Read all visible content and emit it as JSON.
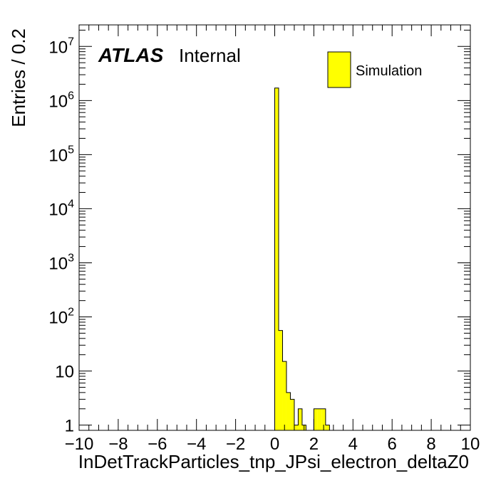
{
  "chart_data": {
    "type": "bar",
    "xlabel": "InDetTrackParticles_tnp_JPsi_electron_deltaZ0",
    "ylabel": "Entries / 0.2",
    "xlim": [
      -10,
      10
    ],
    "ylim": [
      0.8,
      25000000
    ],
    "y_scale": "log",
    "bin_width": 0.2,
    "x_ticks": [
      "−10",
      "−8",
      "−6",
      "−4",
      "−2",
      "0",
      "2",
      "4",
      "6",
      "8",
      "10"
    ],
    "y_ticks": [
      {
        "base": "1",
        "exp": ""
      },
      {
        "base": "10",
        "exp": ""
      },
      {
        "base": "10",
        "exp": "2"
      },
      {
        "base": "10",
        "exp": "3"
      },
      {
        "base": "10",
        "exp": "4"
      },
      {
        "base": "10",
        "exp": "5"
      },
      {
        "base": "10",
        "exp": "6"
      },
      {
        "base": "10",
        "exp": "7"
      }
    ],
    "bins": [
      {
        "x0": 0.0,
        "x1": 0.2,
        "value": 1700000
      },
      {
        "x0": 0.2,
        "x1": 0.4,
        "value": 56
      },
      {
        "x0": 0.4,
        "x1": 0.6,
        "value": 15
      },
      {
        "x0": 0.6,
        "x1": 0.8,
        "value": 4
      },
      {
        "x0": 0.8,
        "x1": 1.0,
        "value": 3
      },
      {
        "x0": 1.0,
        "x1": 1.2,
        "value": 1
      },
      {
        "x0": 1.2,
        "x1": 1.4,
        "value": 2
      },
      {
        "x0": 1.4,
        "x1": 1.6,
        "value": 1
      },
      {
        "x0": 1.6,
        "x1": 1.8,
        "value": 0
      },
      {
        "x0": 1.8,
        "x1": 2.0,
        "value": 0
      },
      {
        "x0": 2.0,
        "x1": 2.2,
        "value": 2
      },
      {
        "x0": 2.2,
        "x1": 2.4,
        "value": 2
      },
      {
        "x0": 2.4,
        "x1": 2.6,
        "value": 2
      },
      {
        "x0": 2.6,
        "x1": 2.8,
        "value": 1
      }
    ],
    "series": [
      {
        "name": "Simulation",
        "color": "#ffff00"
      }
    ],
    "legend": {
      "label": "Simulation",
      "position": "top-right"
    },
    "annotation": {
      "atlas": "ATLAS",
      "status": "Internal"
    },
    "grid": false
  }
}
